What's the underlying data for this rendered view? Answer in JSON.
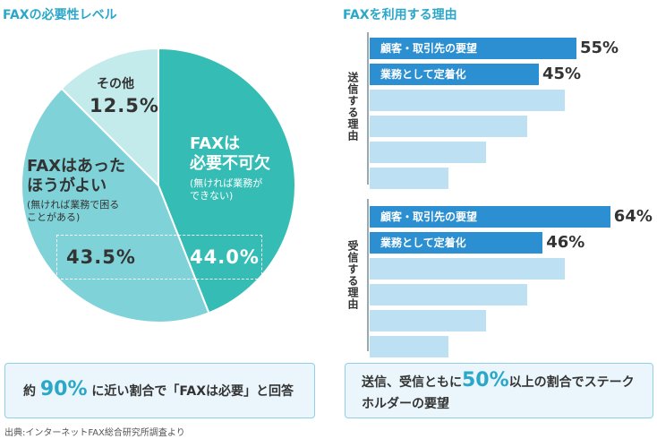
{
  "colors": {
    "accent": "#2aa7c9",
    "pie_dark": "#35bdb5",
    "pie_mid": "#7fd3d8",
    "pie_light": "#c4ebeb",
    "bar_dark": "#2b8fd1",
    "bar_light": "#bde0f2",
    "callout_bg": "#eaf6fb"
  },
  "left_title": "FAXの必要性レベル",
  "right_title": "FAXを利用する理由",
  "pie": {
    "slices": [
      {
        "name": "FAXは必要不可欠",
        "sub": "(無ければ業務ができない)",
        "value": 44.0,
        "label": "44.0%"
      },
      {
        "name": "FAXはあったほうがよい",
        "sub": "(無ければ業務で困ることがある)",
        "value": 43.5,
        "label": "43.5%"
      },
      {
        "name": "その他",
        "value": 12.5,
        "label": "12.5%"
      }
    ],
    "text": {
      "essential_l1": "FAXは",
      "essential_l2": "必要不可欠",
      "essential_sub1": "(無ければ業務が",
      "essential_sub2": "できない)",
      "better_l1": "FAXはあった",
      "better_l2": "ほうがよい",
      "better_sub1": "(無ければ業務で困る",
      "better_sub2": "ことがある)",
      "other_label": "その他"
    }
  },
  "chart_data": [
    {
      "type": "pie",
      "title": "FAXの必要性レベル",
      "labels": [
        "FAXは必要不可欠",
        "FAXはあったほうがよい",
        "その他"
      ],
      "values": [
        44.0,
        43.5,
        12.5
      ]
    },
    {
      "type": "bar",
      "title": "FAXを利用する理由",
      "groups": [
        {
          "name": "送信する理由",
          "categories": [
            "顧客・取引先の要望",
            "業務として定着化",
            "",
            "",
            "",
            ""
          ],
          "values": [
            55,
            45,
            52,
            42,
            31,
            21
          ],
          "labeled": [
            true,
            true,
            false,
            false,
            false,
            false
          ]
        },
        {
          "name": "受信する理由",
          "categories": [
            "顧客・取引先の要望",
            "業務として定着化",
            "",
            "",
            "",
            ""
          ],
          "values": [
            64,
            46,
            52,
            42,
            31,
            21
          ],
          "labeled": [
            true,
            true,
            false,
            false,
            false,
            false
          ]
        }
      ],
      "xlim": [
        0,
        100
      ]
    }
  ],
  "bars": {
    "send_axis_label": "送信する理由",
    "recv_axis_label": "受信する理由",
    "send_top": [
      {
        "label": "顧客・取引先の要望",
        "value": "55%"
      },
      {
        "label": "業務として定着化",
        "value": "45%"
      }
    ],
    "recv_top": [
      {
        "label": "顧客・取引先の要望",
        "value": "64%"
      },
      {
        "label": "業務として定着化",
        "value": "46%"
      }
    ]
  },
  "callout_left": {
    "pre": "約",
    "highlight": "90%",
    "post": "に近い割合で「FAXは必要」と回答"
  },
  "callout_right": {
    "line1_pre": "送信、受信ともに",
    "highlight": "50%",
    "line1_post": "以上の割合でステーク",
    "line2": "ホルダーの要望"
  },
  "source": "出典:インターネットFAX総合研究所調査より"
}
